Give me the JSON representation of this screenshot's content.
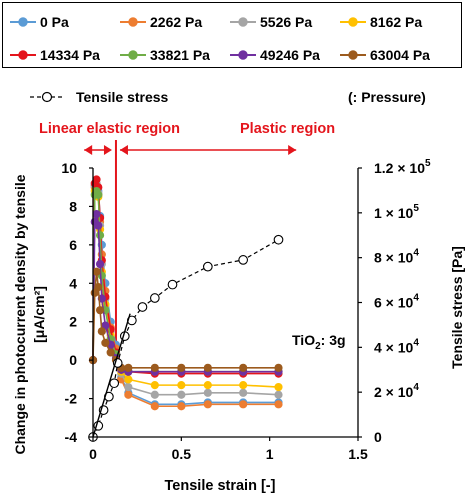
{
  "chart_data": {
    "type": "line",
    "x": [
      0,
      0.01,
      0.02,
      0.03,
      0.04,
      0.05,
      0.07,
      0.1,
      0.13,
      0.16,
      0.2,
      0.35,
      0.5,
      0.65,
      0.85,
      1.05
    ],
    "series": [
      {
        "name": "0 Pa",
        "color": "#5B9BD5",
        "values": [
          0,
          9.1,
          9.0,
          8.8,
          7.5,
          6.0,
          4.0,
          2.0,
          0.8,
          -0.9,
          -1.7,
          -2.3,
          -2.3,
          -2.2,
          -2.2,
          -2.2
        ]
      },
      {
        "name": "2262 Pa",
        "color": "#ED7D31",
        "values": [
          0,
          9.0,
          8.9,
          8.6,
          7.2,
          5.5,
          3.6,
          1.7,
          0.6,
          -1.0,
          -1.8,
          -2.4,
          -2.4,
          -2.3,
          -2.3,
          -2.3
        ]
      },
      {
        "name": "5526 Pa",
        "color": "#A5A5A5",
        "values": [
          0,
          9.1,
          9.2,
          8.7,
          7.0,
          5.0,
          3.2,
          1.5,
          0.4,
          -0.7,
          -1.4,
          -1.8,
          -1.8,
          -1.7,
          -1.7,
          -1.8
        ]
      },
      {
        "name": "8162 Pa",
        "color": "#FFC000",
        "values": [
          0,
          8.8,
          8.9,
          8.5,
          6.8,
          4.6,
          2.9,
          1.3,
          0.3,
          -0.6,
          -1.0,
          -1.3,
          -1.3,
          -1.3,
          -1.3,
          -1.4
        ]
      },
      {
        "name": "14334 Pa",
        "color": "#E4151C",
        "values": [
          0,
          9.2,
          9.4,
          9.0,
          7.4,
          5.2,
          3.3,
          1.6,
          0.4,
          -0.5,
          -0.6,
          -0.7,
          -0.7,
          -0.7,
          -0.7,
          -0.7
        ]
      },
      {
        "name": "33821 Pa",
        "color": "#70AD47",
        "values": [
          0,
          8.6,
          8.8,
          8.6,
          6.5,
          4.4,
          2.6,
          1.1,
          0.3,
          -0.5,
          -0.6,
          -0.6,
          -0.6,
          -0.6,
          -0.6,
          -0.6
        ]
      },
      {
        "name": "49246 Pa",
        "color": "#7030A0",
        "values": [
          0,
          7.2,
          7.6,
          7.0,
          5.0,
          3.2,
          1.8,
          0.8,
          0.1,
          -0.5,
          -0.6,
          -0.6,
          -0.6,
          -0.6,
          -0.6,
          -0.6
        ]
      },
      {
        "name": "63004 Pa",
        "color": "#9C5B1E",
        "values": [
          0,
          3.5,
          4.6,
          3.8,
          2.6,
          1.5,
          0.9,
          0.4,
          0.0,
          -0.4,
          -0.4,
          -0.4,
          -0.4,
          -0.4,
          -0.4,
          -0.4
        ]
      }
    ],
    "stress_series": {
      "name": "Tensile stress",
      "x": [
        0.0,
        0.03,
        0.06,
        0.09,
        0.12,
        0.14,
        0.18,
        0.22,
        0.28,
        0.35,
        0.45,
        0.65,
        0.85,
        1.05
      ],
      "values": [
        0,
        5000,
        12000,
        18000,
        24000,
        33000,
        45000,
        52000,
        58000,
        62000,
        68000,
        76000,
        79000,
        88000
      ],
      "axis": "right"
    },
    "xlabel": "Tensile  strain   [-]",
    "ylabel": "Change in photocurrent density by tensile\n[μA/cm²]",
    "y2label": "Tensile stress  [Pa]",
    "xlim": [
      0,
      1.5
    ],
    "ylim": [
      -4,
      10
    ],
    "y2lim": [
      0,
      120000
    ],
    "x_ticks": [
      "0",
      "0.5",
      "1",
      "1.5"
    ],
    "y_ticks": [
      "-4",
      "-2",
      "0",
      "2",
      "4",
      "6",
      "8",
      "10"
    ],
    "y2_ticks": [
      {
        "mant": "0",
        "exp": ""
      },
      {
        "mant": "2 × 10",
        "exp": "4"
      },
      {
        "mant": "4 × 10",
        "exp": "4"
      },
      {
        "mant": "6 × 10",
        "exp": "4"
      },
      {
        "mant": "8 × 10",
        "exp": "4"
      },
      {
        "mant": "1 × 10",
        "exp": "5"
      },
      {
        "mant": "1.2 × 10",
        "exp": "5"
      }
    ],
    "legend_note": "(: Pressure)",
    "region_boundary": 0.13,
    "regions": [
      {
        "label": "Linear elastic region",
        "color": "#E4151C",
        "from": -0.05,
        "to": 0.13
      },
      {
        "label": "Plastic region",
        "color": "#E4151C",
        "from": 0.13,
        "to": 1.15
      }
    ],
    "annotation": {
      "text_main": "TiO",
      "text_sub": "2",
      "text_tail": ": 3g",
      "x": 0.95,
      "y": 1.0
    }
  }
}
